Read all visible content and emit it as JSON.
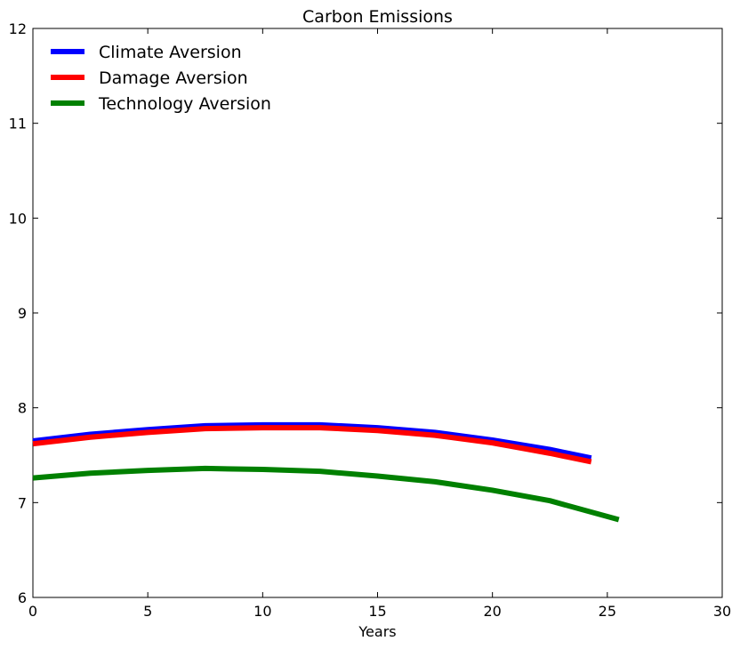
{
  "chart_data": {
    "type": "line",
    "title": "Carbon Emissions",
    "xlabel": "Years",
    "ylabel": "",
    "xlim": [
      0,
      30
    ],
    "ylim": [
      6,
      12
    ],
    "xticks": [
      0,
      5,
      10,
      15,
      20,
      25,
      30
    ],
    "yticks": [
      6,
      7,
      8,
      9,
      10,
      11,
      12
    ],
    "grid": false,
    "legend_position": "top-left",
    "series": [
      {
        "name": "Climate Aversion",
        "color": "#0000ff",
        "x": [
          0,
          2.5,
          5,
          7.5,
          10,
          12.5,
          15,
          17.5,
          20,
          22.5,
          24.3
        ],
        "y": [
          7.65,
          7.72,
          7.77,
          7.81,
          7.82,
          7.82,
          7.79,
          7.74,
          7.66,
          7.56,
          7.47
        ]
      },
      {
        "name": "Damage Aversion",
        "color": "#ff0000",
        "x": [
          0,
          2.5,
          5,
          7.5,
          10,
          12.5,
          15,
          17.5,
          20,
          22.5,
          24.3
        ],
        "y": [
          7.62,
          7.69,
          7.74,
          7.78,
          7.79,
          7.79,
          7.76,
          7.71,
          7.63,
          7.52,
          7.43
        ]
      },
      {
        "name": "Technology Aversion",
        "color": "#008000",
        "x": [
          0,
          2.5,
          5,
          7.5,
          10,
          12.5,
          15,
          17.5,
          20,
          22.5,
          25.5
        ],
        "y": [
          7.26,
          7.31,
          7.34,
          7.36,
          7.35,
          7.33,
          7.28,
          7.22,
          7.13,
          7.02,
          6.82
        ]
      }
    ]
  }
}
